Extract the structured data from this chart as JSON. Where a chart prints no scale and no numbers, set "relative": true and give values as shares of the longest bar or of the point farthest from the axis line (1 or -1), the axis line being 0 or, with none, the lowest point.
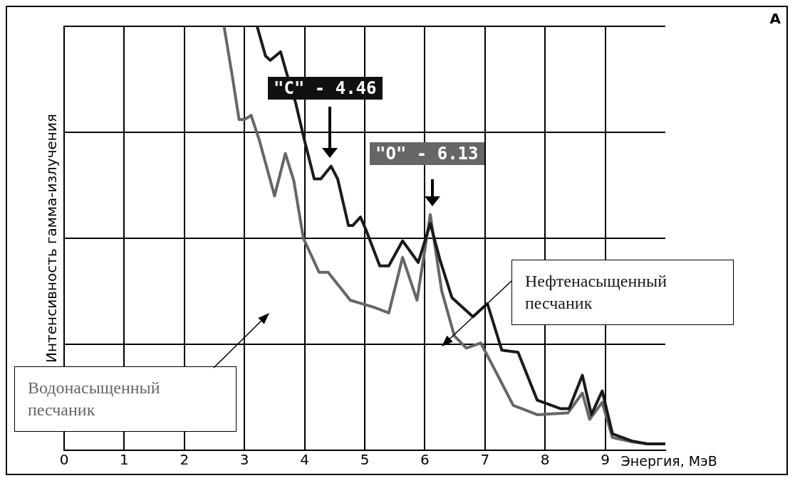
{
  "chart_data": {
    "type": "line",
    "title": "А",
    "xlabel": "Энергия, МэВ",
    "ylabel": "Интенсивность гамма-излучения",
    "relative": true,
    "grid": true,
    "marker": "none",
    "line_style": "solid",
    "xlim": [
      0,
      10
    ],
    "xticks": [
      0,
      1,
      2,
      3,
      4,
      5,
      6,
      7,
      8,
      9
    ],
    "series": [
      {
        "name": "Нефтенасыщенный песчаник",
        "color": "#1a1a1a",
        "x": [
          3.21,
          3.35,
          3.43,
          3.6,
          3.7,
          3.85,
          4.0,
          4.16,
          4.27,
          4.44,
          4.55,
          4.73,
          4.8,
          4.93,
          5.02,
          5.25,
          5.4,
          5.63,
          5.89,
          6.09,
          6.25,
          6.45,
          6.8,
          7.04,
          7.28,
          7.55,
          7.87,
          8.26,
          8.4,
          8.62,
          8.77,
          8.95,
          9.12,
          9.44,
          9.7,
          10.0
        ],
        "values": [
          1.0,
          0.93,
          0.92,
          0.94,
          0.89,
          0.82,
          0.73,
          0.64,
          0.64,
          0.67,
          0.64,
          0.53,
          0.53,
          0.55,
          0.52,
          0.435,
          0.435,
          0.494,
          0.443,
          0.535,
          0.45,
          0.36,
          0.315,
          0.346,
          0.236,
          0.231,
          0.118,
          0.098,
          0.098,
          0.177,
          0.084,
          0.14,
          0.039,
          0.022,
          0.015,
          0.015
        ]
      },
      {
        "name": "Водонасыщенный песчаник",
        "color": "#666666",
        "x": [
          2.66,
          2.8,
          2.91,
          3.0,
          3.11,
          3.25,
          3.5,
          3.68,
          3.82,
          3.98,
          4.24,
          4.39,
          4.76,
          5.16,
          5.4,
          5.63,
          5.87,
          6.09,
          6.28,
          6.49,
          6.69,
          6.93,
          7.2,
          7.47,
          7.87,
          8.38,
          8.62,
          8.74,
          8.95,
          9.12,
          9.44,
          9.7,
          10.0
        ],
        "values": [
          1.0,
          0.88,
          0.78,
          0.78,
          0.79,
          0.73,
          0.6,
          0.7,
          0.636,
          0.5,
          0.42,
          0.42,
          0.354,
          0.337,
          0.324,
          0.455,
          0.354,
          0.556,
          0.376,
          0.27,
          0.241,
          0.253,
          0.18,
          0.106,
          0.084,
          0.088,
          0.135,
          0.073,
          0.113,
          0.03,
          0.02,
          0.015,
          0.015
        ]
      }
    ],
    "annotations": [
      "\"C\" - 4.46",
      "\"O\" - 6.13"
    ]
  }
}
